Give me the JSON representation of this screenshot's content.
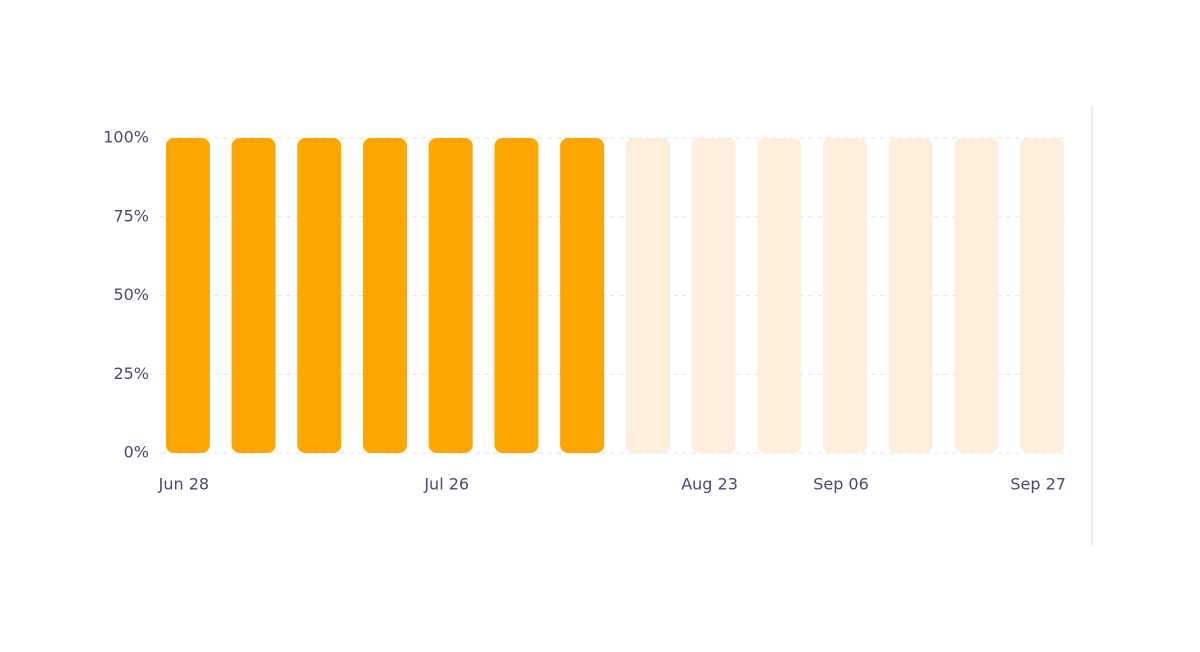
{
  "chart_data": {
    "type": "bar",
    "categories": [
      "Jun 28",
      null,
      null,
      null,
      "Jul 26",
      null,
      null,
      null,
      "Aug 23",
      null,
      "Sep 06",
      null,
      null,
      "Sep 27"
    ],
    "values": [
      100,
      100,
      100,
      100,
      100,
      100,
      100,
      100,
      100,
      100,
      100,
      100,
      100,
      100
    ],
    "colors": [
      "#ffa500",
      "#ffa500",
      "#ffa500",
      "#ffa500",
      "#ffa500",
      "#ffa500",
      "#ffa500",
      "#feeedb",
      "#feeedb",
      "#feeedb",
      "#feeedb",
      "#feeedb",
      "#feeedb",
      "#feeedb"
    ],
    "ylim": [
      0,
      100
    ],
    "yticks": [
      {
        "value": 0,
        "label": "0%"
      },
      {
        "value": 25,
        "label": "25%"
      },
      {
        "value": 50,
        "label": "50%"
      },
      {
        "value": 75,
        "label": "75%"
      },
      {
        "value": 100,
        "label": "100%"
      }
    ],
    "grid": true
  }
}
